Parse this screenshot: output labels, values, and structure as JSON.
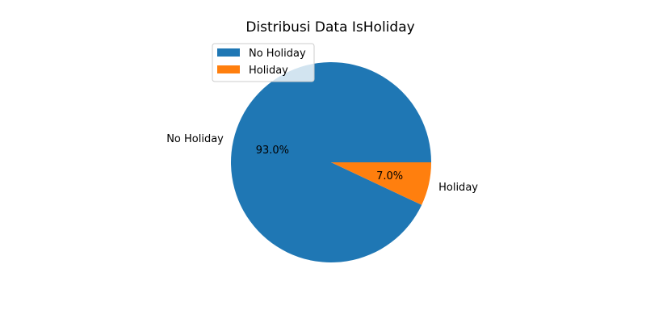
{
  "chart_data": {
    "type": "pie",
    "title": "Distribusi Data IsHoliday",
    "categories": [
      "No Holiday",
      "Holiday"
    ],
    "values": [
      93.0,
      7.0
    ],
    "percent_labels": [
      "93.0%",
      "7.0%"
    ],
    "colors": [
      "#1f77b4",
      "#ff7f0e"
    ],
    "legend": {
      "placement": "upper-left",
      "entries": [
        "No Holiday",
        "Holiday"
      ]
    },
    "start_angle_deg": 0,
    "direction": "counterclockwise"
  }
}
